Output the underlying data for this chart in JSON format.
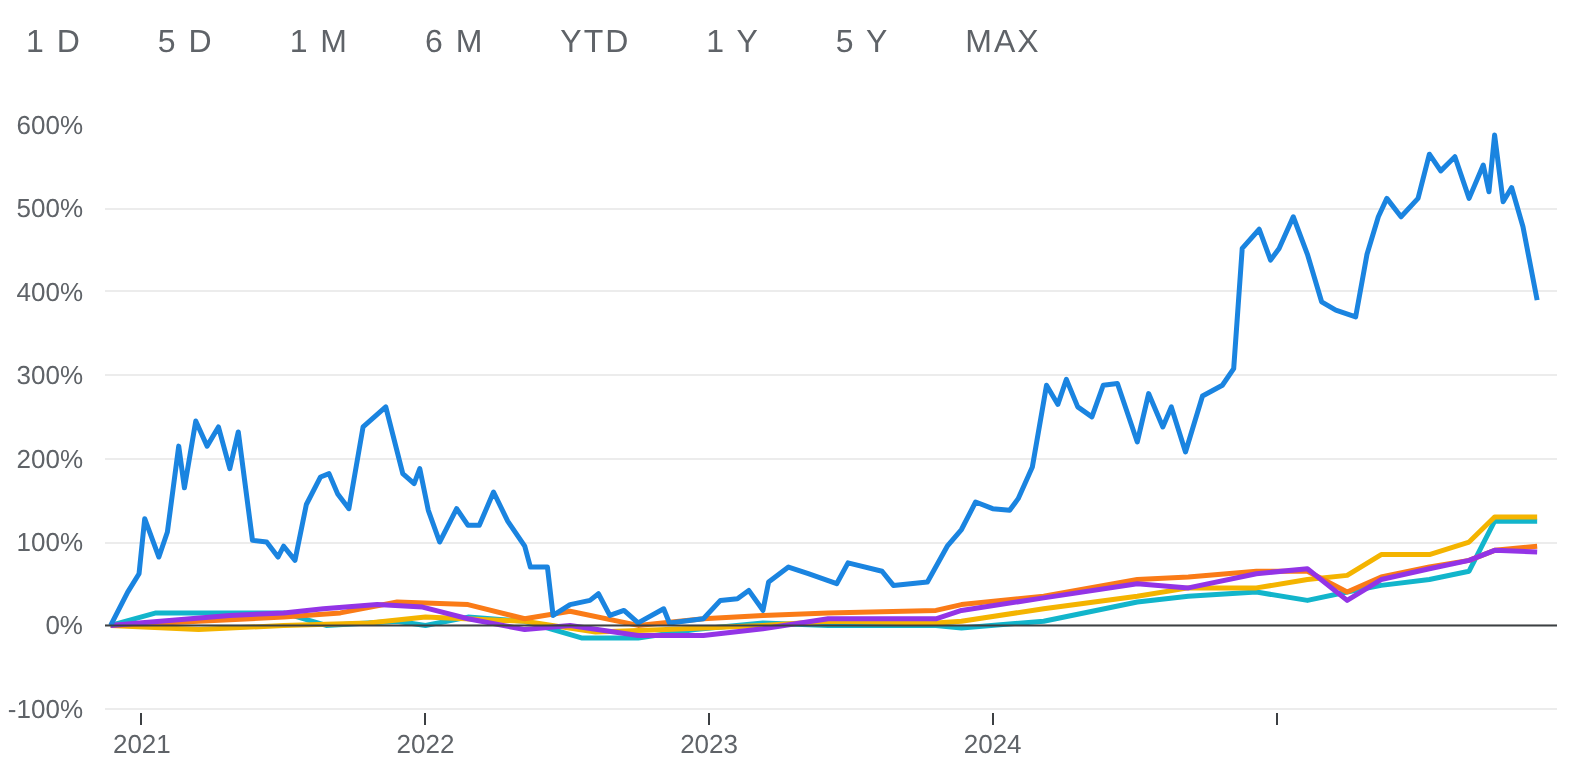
{
  "chart_data": {
    "type": "line",
    "annotations": [
      "1 D",
      "5 D",
      "1 M",
      "6 M",
      "YTD",
      "1 Y",
      "5 Y",
      "MAX"
    ],
    "series": [
      {
        "color": "#12b5cb",
        "x": [
          2020.89,
          2021.05,
          2021.3,
          2021.5,
          2021.65,
          2021.9,
          2022.0,
          2022.15,
          2022.35,
          2022.55,
          2022.75,
          2022.95,
          2023.19,
          2023.42,
          2023.8,
          2023.89,
          2024.18,
          2024.51,
          2024.69,
          2024.93,
          2025.11,
          2025.25,
          2025.37,
          2025.54,
          2025.68,
          2025.77,
          2025.92
        ],
        "values": [
          0,
          15,
          15,
          15,
          0,
          5,
          0,
          10,
          5,
          -15,
          -15,
          -5,
          3,
          0,
          0,
          -3,
          5,
          28,
          35,
          40,
          30,
          40,
          48,
          55,
          65,
          125,
          125
        ]
      },
      {
        "color": "#f4b400",
        "x": [
          2020.89,
          2021.2,
          2021.5,
          2021.8,
          2022.0,
          2022.35,
          2022.6,
          2022.85,
          2023.19,
          2023.42,
          2023.8,
          2023.89,
          2024.18,
          2024.51,
          2024.69,
          2024.93,
          2025.11,
          2025.25,
          2025.37,
          2025.54,
          2025.68,
          2025.77,
          2025.92
        ],
        "values": [
          0,
          -5,
          0,
          3,
          10,
          5,
          -8,
          -5,
          0,
          5,
          3,
          5,
          20,
          35,
          45,
          45,
          55,
          60,
          85,
          85,
          100,
          130,
          130
        ]
      },
      {
        "color": "#fa7b17",
        "x": [
          2020.89,
          2021.2,
          2021.5,
          2021.7,
          2021.9,
          2022.15,
          2022.35,
          2022.51,
          2022.75,
          2022.98,
          2023.19,
          2023.42,
          2023.8,
          2023.89,
          2024.18,
          2024.51,
          2024.69,
          2024.93,
          2025.11,
          2025.25,
          2025.37,
          2025.54,
          2025.68,
          2025.77,
          2025.92
        ],
        "values": [
          0,
          5,
          10,
          15,
          28,
          25,
          8,
          17,
          0,
          8,
          12,
          15,
          18,
          25,
          35,
          55,
          58,
          65,
          65,
          40,
          58,
          70,
          78,
          90,
          95
        ]
      },
      {
        "color": "#9334e6",
        "x": [
          2020.89,
          2020.99,
          2021.31,
          2021.5,
          2021.64,
          2021.83,
          2021.99,
          2022.15,
          2022.35,
          2022.51,
          2022.75,
          2022.98,
          2023.19,
          2023.42,
          2023.8,
          2023.89,
          2024.18,
          2024.51,
          2024.69,
          2024.93,
          2025.11,
          2025.25,
          2025.37,
          2025.54,
          2025.68,
          2025.77,
          2025.92
        ],
        "values": [
          0,
          3,
          12,
          15,
          20,
          25,
          22,
          8,
          -5,
          0,
          -12,
          -12,
          -4,
          8,
          8,
          18,
          33,
          50,
          45,
          62,
          68,
          30,
          55,
          68,
          78,
          90,
          88
        ]
      },
      {
        "color": "#1a84e0",
        "x": [
          2020.89,
          2020.95,
          2020.99,
          2021.01,
          2021.06,
          2021.09,
          2021.13,
          2021.15,
          2021.19,
          2021.23,
          2021.27,
          2021.31,
          2021.34,
          2021.39,
          2021.44,
          2021.48,
          2021.5,
          2021.54,
          2021.58,
          2021.63,
          2021.66,
          2021.69,
          2021.73,
          2021.78,
          2021.82,
          2021.86,
          2021.92,
          2021.96,
          2021.98,
          2022.01,
          2022.05,
          2022.11,
          2022.15,
          2022.19,
          2022.24,
          2022.29,
          2022.35,
          2022.37,
          2022.43,
          2022.45,
          2022.51,
          2022.58,
          2022.61,
          2022.65,
          2022.7,
          2022.75,
          2022.84,
          2022.86,
          2022.98,
          2023.04,
          2023.1,
          2023.14,
          2023.19,
          2023.21,
          2023.28,
          2023.35,
          2023.45,
          2023.49,
          2023.61,
          2023.65,
          2023.77,
          2023.84,
          2023.89,
          2023.94,
          2024.0,
          2024.06,
          2024.09,
          2024.14,
          2024.19,
          2024.23,
          2024.26,
          2024.3,
          2024.35,
          2024.39,
          2024.44,
          2024.51,
          2024.55,
          2024.6,
          2024.63,
          2024.68,
          2024.74,
          2024.81,
          2024.85,
          2024.88,
          2024.94,
          2024.98,
          2025.01,
          2025.06,
          2025.11,
          2025.16,
          2025.21,
          2025.28,
          2025.32,
          2025.36,
          2025.39,
          2025.44,
          2025.5,
          2025.54,
          2025.58,
          2025.63,
          2025.68,
          2025.73,
          2025.75,
          2025.77,
          2025.8,
          2025.83,
          2025.87,
          2025.92
        ],
        "values": [
          0,
          40,
          62,
          128,
          82,
          112,
          215,
          165,
          245,
          215,
          238,
          188,
          232,
          102,
          100,
          82,
          95,
          78,
          145,
          178,
          182,
          158,
          140,
          238,
          250,
          262,
          182,
          170,
          188,
          138,
          100,
          140,
          120,
          120,
          160,
          125,
          95,
          70,
          70,
          12,
          25,
          30,
          38,
          12,
          18,
          3,
          20,
          3,
          8,
          30,
          32,
          42,
          18,
          52,
          70,
          62,
          50,
          75,
          65,
          48,
          52,
          95,
          115,
          148,
          140,
          138,
          152,
          190,
          288,
          265,
          295,
          262,
          250,
          288,
          290,
          220,
          278,
          238,
          262,
          208,
          275,
          288,
          308,
          452,
          475,
          438,
          452,
          490,
          445,
          388,
          378,
          370,
          445,
          490,
          512,
          490,
          512,
          565,
          545,
          562,
          512,
          552,
          520,
          588,
          508,
          525,
          478,
          390
        ]
      }
    ],
    "xlim": [
      2020.87,
      2025.99
    ],
    "xticks": [
      2021,
      2022,
      2023,
      2024,
      {
        "value": 2025,
        "label": null
      }
    ],
    "ylim": [
      -105,
      600
    ],
    "yticks": [
      {
        "value": -100,
        "label": "-100%"
      },
      {
        "value": 0,
        "label": "0%"
      },
      {
        "value": 100,
        "label": "100%"
      },
      {
        "value": 200,
        "label": "200%"
      },
      {
        "value": 300,
        "label": "300%"
      },
      {
        "value": 400,
        "label": "400%"
      },
      {
        "value": 500,
        "label": "500%"
      },
      {
        "value": 600,
        "label": "600%"
      }
    ],
    "ref_lines": [
      {
        "axis": "y",
        "value": 0,
        "color": "#3c4043"
      }
    ],
    "grid": "y",
    "line_style": "solid"
  }
}
